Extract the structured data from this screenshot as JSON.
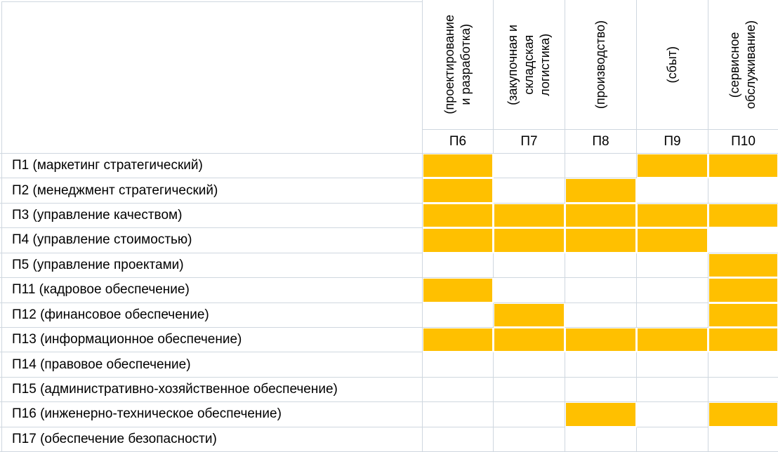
{
  "matrix": {
    "columns": [
      {
        "id": "П6",
        "title": "(проектирование\nи разработка)"
      },
      {
        "id": "П7",
        "title": "(закупочная и\nскладская\nлогистика)"
      },
      {
        "id": "П8",
        "title": "(производство)"
      },
      {
        "id": "П9",
        "title": "(сбыт)"
      },
      {
        "id": "П10",
        "title": "(сервисное\nобслуживание)"
      }
    ],
    "rows": [
      {
        "label": "П1 (маркетинг стратегический)",
        "cells": [
          1,
          0,
          0,
          1,
          1
        ]
      },
      {
        "label": "П2 (менеджмент стратегический)",
        "cells": [
          1,
          0,
          1,
          0,
          0
        ]
      },
      {
        "label": "П3 (управление качеством)",
        "cells": [
          1,
          1,
          1,
          1,
          1
        ]
      },
      {
        "label": "П4 (управление стоимостью)",
        "cells": [
          1,
          1,
          1,
          1,
          0
        ]
      },
      {
        "label": "П5 (управление проектами)",
        "cells": [
          0,
          0,
          0,
          0,
          1
        ]
      },
      {
        "label": "П11 (кадровое обеспечение)",
        "cells": [
          1,
          0,
          0,
          0,
          1
        ]
      },
      {
        "label": "П12 (финансовое обеспечение)",
        "cells": [
          0,
          1,
          0,
          0,
          1
        ]
      },
      {
        "label": "П13 (информационное обеспечение)",
        "cells": [
          1,
          1,
          1,
          1,
          1
        ]
      },
      {
        "label": "П14 (правовое обеспечение)",
        "cells": [
          0,
          0,
          0,
          0,
          0
        ]
      },
      {
        "label": "П15 (административно-хозяйственное обеспечение)",
        "cells": [
          0,
          0,
          0,
          0,
          0
        ]
      },
      {
        "label": "П16 (инженерно-техническое обеспечение)",
        "cells": [
          0,
          0,
          1,
          0,
          1
        ]
      },
      {
        "label": "П17 (обеспечение безопасности)",
        "cells": [
          0,
          0,
          0,
          0,
          0
        ]
      }
    ],
    "colors": {
      "fill": "#FFC000",
      "gridline": "#cfd7df"
    }
  }
}
